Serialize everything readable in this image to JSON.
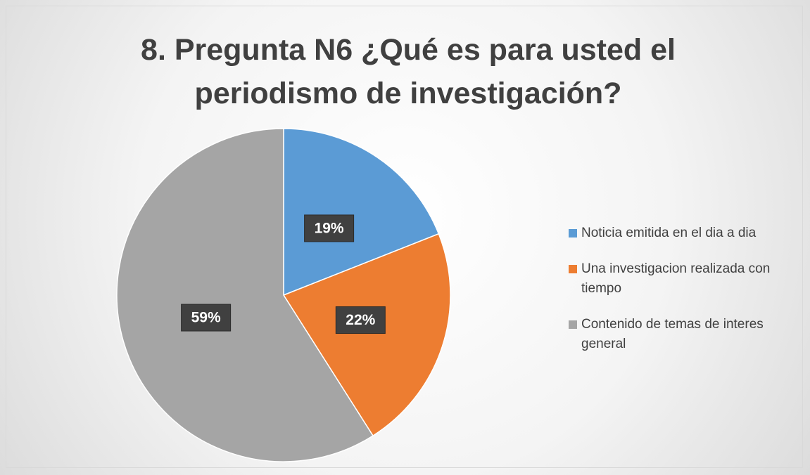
{
  "chart_data": {
    "type": "pie",
    "title": "8. Pregunta N6 ¿Qué es para usted el periodismo de investigación?",
    "categories": [
      "Noticia emitida en el dia a dia",
      "Una investigacion realizada con tiempo",
      "Contenido de temas de interes general"
    ],
    "values": [
      19,
      22,
      59
    ],
    "value_labels": [
      "19%",
      "22%",
      "59%"
    ],
    "colors": [
      "#5b9bd5",
      "#ed7d31",
      "#a5a5a5"
    ],
    "legend": "right"
  }
}
